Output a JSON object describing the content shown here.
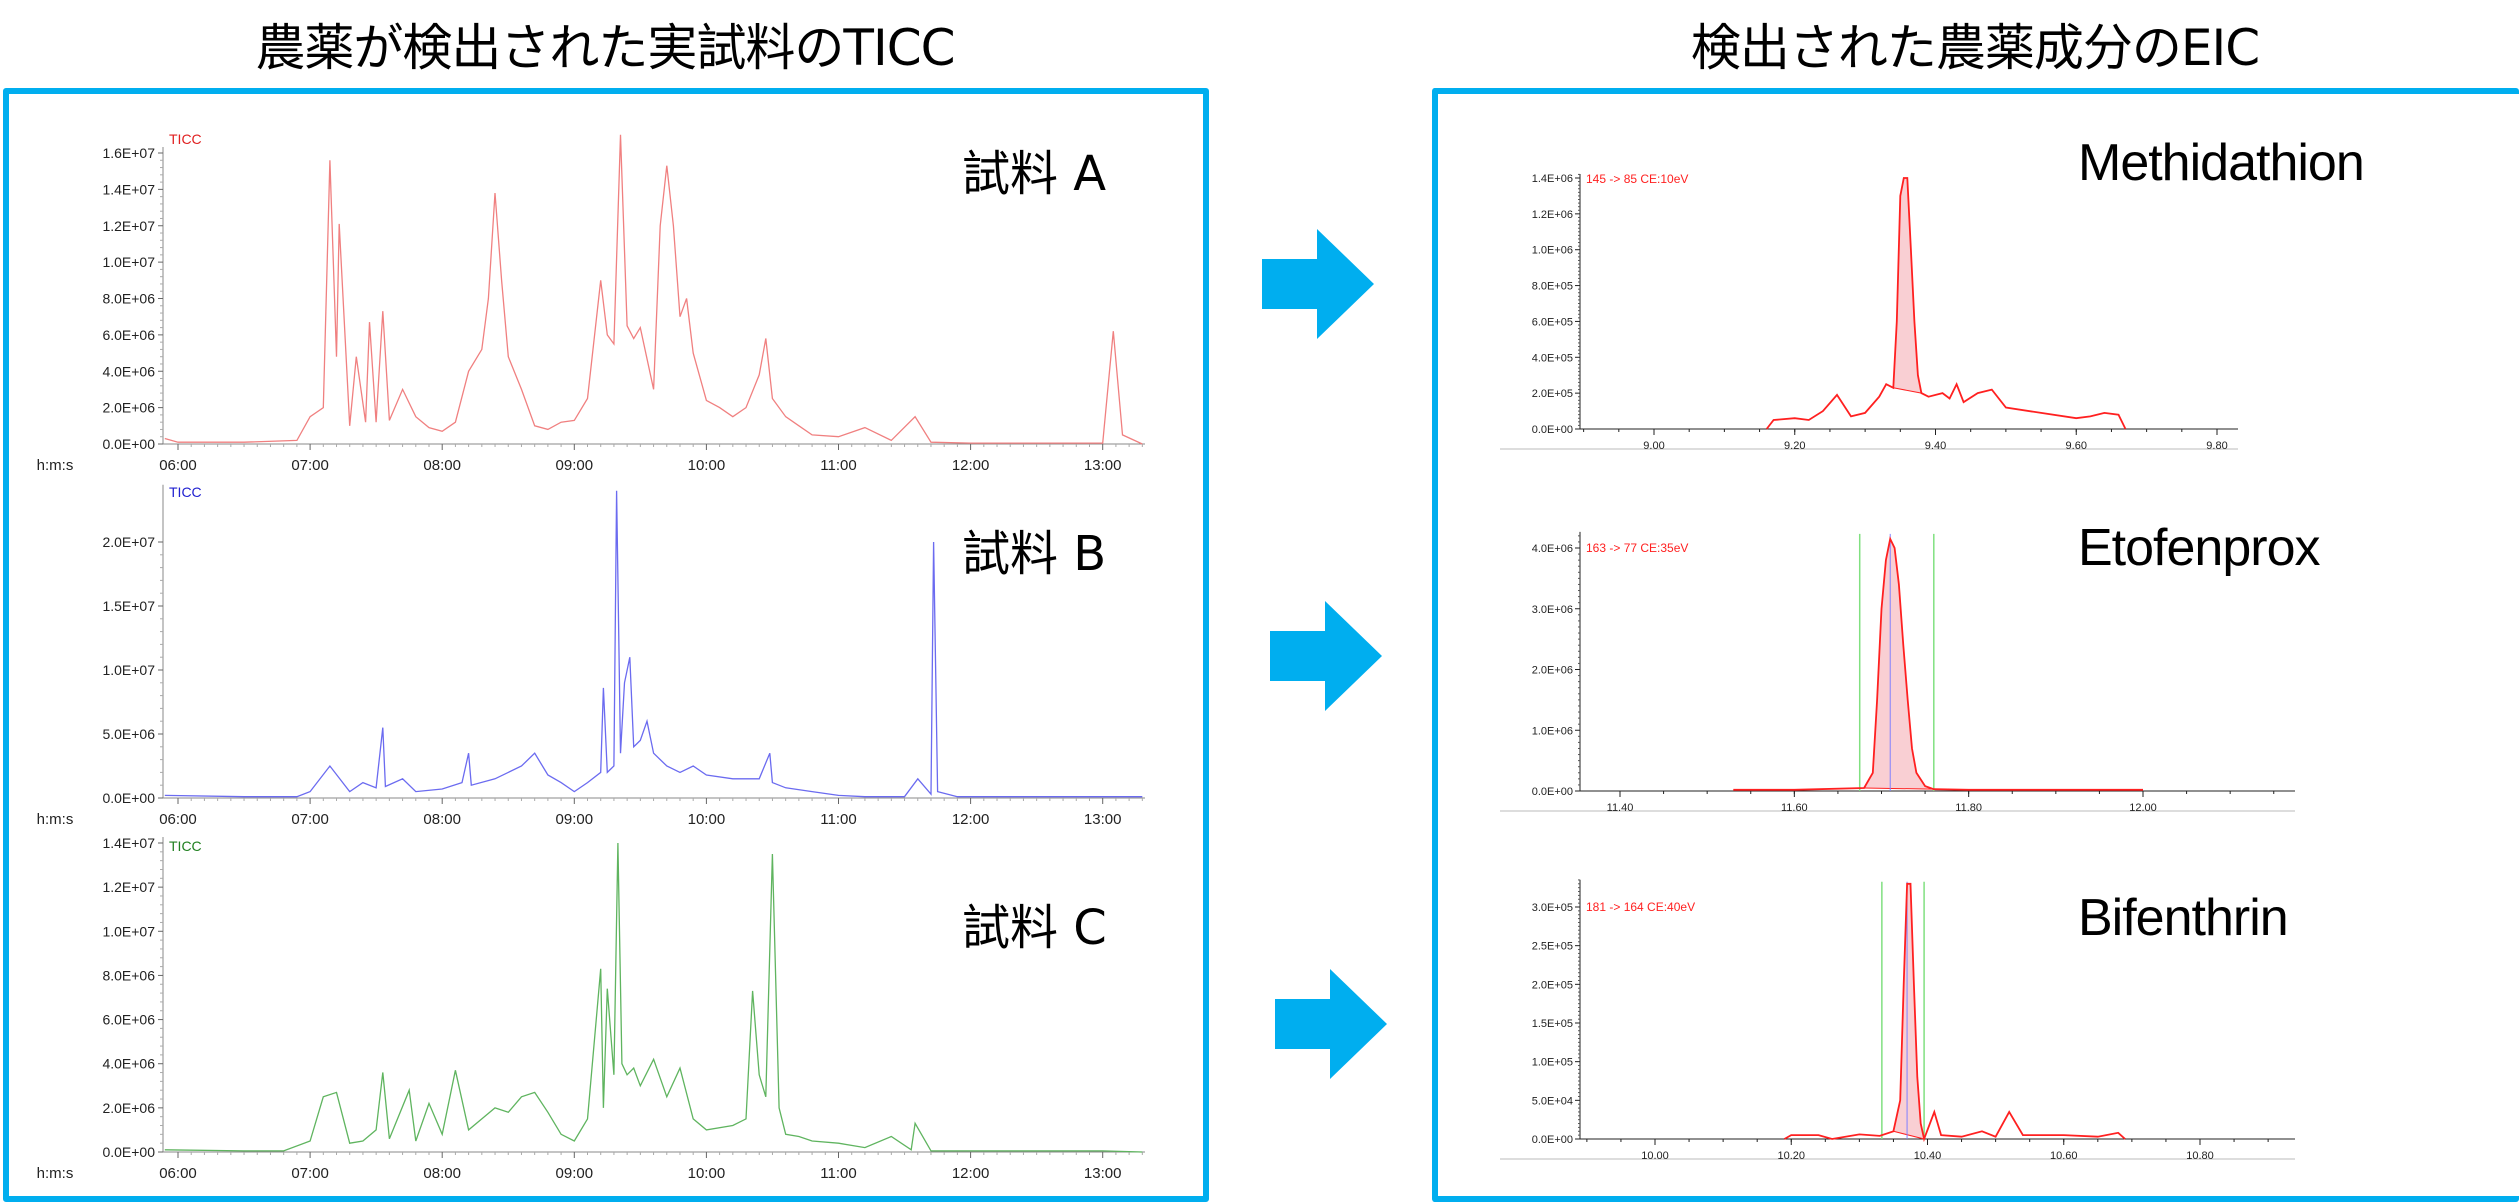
{
  "headings": {
    "left": "農薬が検出された実試料のTICC",
    "right": "検出された農薬成分のEIC"
  },
  "colors": {
    "frame": "#00AEEF",
    "arrow": "#00AEEF",
    "sample_a": "#F08080",
    "sample_a_label": "#E02020",
    "sample_b": "#6B6BF0",
    "sample_b_label": "#2020D0",
    "sample_c": "#5FB45F",
    "sample_c_label": "#208020",
    "eic_line": "#FF2020",
    "eic_fill": "#F9CFD3",
    "integration_marker": "#80E080",
    "apex_marker": "#8080FF"
  },
  "samples": [
    {
      "label": "試料 A",
      "trace_label": "TICC"
    },
    {
      "label": "試料 B",
      "trace_label": "TICC"
    },
    {
      "label": "試料 C",
      "trace_label": "TICC"
    }
  ],
  "compounds": [
    {
      "name": "Methidathion",
      "transition": "145 -> 85 CE:10eV"
    },
    {
      "name": "Etofenprox",
      "transition": "163 -> 77 CE:35eV"
    },
    {
      "name": "Bifenthrin",
      "transition": "181 -> 164 CE:40eV"
    }
  ],
  "chart_data": [
    {
      "type": "line",
      "title": "TICC",
      "panel_label": "試料 A",
      "xlabel": "h:m:s",
      "ylabel": "",
      "x_ticks": [
        "06:00",
        "07:00",
        "08:00",
        "09:00",
        "10:00",
        "11:00",
        "12:00",
        "13:00"
      ],
      "y_ticks": [
        "0.0E+00",
        "2.0E+06",
        "4.0E+06",
        "6.0E+06",
        "8.0E+06",
        "1.0E+07",
        "1.2E+07",
        "1.4E+07",
        "1.6E+07"
      ],
      "xlim_min": [
        5.9,
        13.33
      ],
      "ylim": [
        0,
        16000000
      ],
      "series": [
        {
          "name": "TICC",
          "x_min": [
            5.9,
            6.0,
            6.5,
            6.9,
            7.0,
            7.1,
            7.15,
            7.2,
            7.22,
            7.3,
            7.35,
            7.42,
            7.45,
            7.5,
            7.55,
            7.6,
            7.7,
            7.8,
            7.9,
            8.0,
            8.1,
            8.2,
            8.3,
            8.35,
            8.4,
            8.45,
            8.5,
            8.6,
            8.7,
            8.8,
            8.9,
            9.0,
            9.1,
            9.2,
            9.25,
            9.3,
            9.35,
            9.4,
            9.45,
            9.5,
            9.6,
            9.65,
            9.7,
            9.75,
            9.8,
            9.85,
            9.9,
            10.0,
            10.1,
            10.2,
            10.3,
            10.4,
            10.45,
            10.5,
            10.6,
            10.7,
            10.8,
            11.0,
            11.2,
            11.4,
            11.58,
            11.7,
            12.0,
            12.5,
            13.0,
            13.08,
            13.15,
            13.3
          ],
          "values": [
            300000,
            100000,
            100000,
            200000,
            1500000,
            2000000,
            15600000,
            4800000,
            12100000,
            1000000,
            4800000,
            1200000,
            6700000,
            1200000,
            7300000,
            1300000,
            3000000,
            1500000,
            900000,
            700000,
            1200000,
            4000000,
            5200000,
            8000000,
            13800000,
            9000000,
            4800000,
            3000000,
            1000000,
            800000,
            1200000,
            1300000,
            2500000,
            9000000,
            6000000,
            5500000,
            17000000,
            6500000,
            5800000,
            6400000,
            3000000,
            12000000,
            15300000,
            12000000,
            7000000,
            8000000,
            5000000,
            2400000,
            2000000,
            1500000,
            2000000,
            3800000,
            5800000,
            2500000,
            1500000,
            1000000,
            500000,
            400000,
            900000,
            200000,
            1500000,
            100000,
            50000,
            50000,
            50000,
            6200000,
            500000,
            0
          ]
        }
      ]
    },
    {
      "type": "line",
      "title": "TICC",
      "panel_label": "試料 B",
      "xlabel": "h:m:s",
      "x_ticks": [
        "06:00",
        "07:00",
        "08:00",
        "09:00",
        "10:00",
        "11:00",
        "12:00",
        "13:00"
      ],
      "y_ticks": [
        "0.0E+00",
        "5.0E+06",
        "1.0E+07",
        "1.5E+07",
        "2.0E+07"
      ],
      "xlim_min": [
        5.9,
        13.33
      ],
      "ylim": [
        0,
        24000000
      ],
      "series": [
        {
          "name": "TICC",
          "x_min": [
            5.9,
            6.5,
            6.9,
            7.0,
            7.15,
            7.3,
            7.4,
            7.5,
            7.55,
            7.57,
            7.7,
            7.8,
            8.0,
            8.15,
            8.2,
            8.22,
            8.4,
            8.6,
            8.7,
            8.8,
            8.9,
            9.0,
            9.1,
            9.2,
            9.22,
            9.25,
            9.3,
            9.32,
            9.35,
            9.38,
            9.42,
            9.45,
            9.5,
            9.55,
            9.6,
            9.7,
            9.8,
            9.9,
            10.0,
            10.2,
            10.4,
            10.48,
            10.5,
            10.6,
            10.8,
            11.0,
            11.2,
            11.5,
            11.6,
            11.7,
            11.72,
            11.75,
            11.9,
            12.5,
            13.3
          ],
          "values": [
            200000,
            100000,
            100000,
            500000,
            2500000,
            500000,
            1200000,
            800000,
            5500000,
            900000,
            1500000,
            500000,
            700000,
            1200000,
            3500000,
            1000000,
            1500000,
            2500000,
            3500000,
            1800000,
            1200000,
            500000,
            1200000,
            2000000,
            8600000,
            2000000,
            2500000,
            24000000,
            3500000,
            9000000,
            11000000,
            4000000,
            4500000,
            6000000,
            3500000,
            2500000,
            2000000,
            2500000,
            1800000,
            1500000,
            1500000,
            3500000,
            1200000,
            800000,
            500000,
            200000,
            100000,
            100000,
            1500000,
            300000,
            20000000,
            500000,
            100000,
            100000,
            100000
          ]
        }
      ]
    },
    {
      "type": "line",
      "title": "TICC",
      "panel_label": "試料 C",
      "xlabel": "h:m:s",
      "x_ticks": [
        "06:00",
        "07:00",
        "08:00",
        "09:00",
        "10:00",
        "11:00",
        "12:00",
        "13:00"
      ],
      "y_ticks": [
        "0.0E+00",
        "2.0E+06",
        "4.0E+06",
        "6.0E+06",
        "8.0E+06",
        "1.0E+07",
        "1.2E+07",
        "1.4E+07"
      ],
      "xlim_min": [
        5.9,
        13.33
      ],
      "ylim": [
        0,
        14000000
      ],
      "series": [
        {
          "name": "TICC",
          "x_min": [
            5.9,
            6.5,
            6.8,
            7.0,
            7.1,
            7.2,
            7.3,
            7.4,
            7.5,
            7.55,
            7.6,
            7.75,
            7.8,
            7.9,
            8.0,
            8.1,
            8.2,
            8.3,
            8.4,
            8.5,
            8.6,
            8.7,
            8.8,
            8.9,
            9.0,
            9.1,
            9.2,
            9.22,
            9.25,
            9.3,
            9.33,
            9.36,
            9.4,
            9.45,
            9.5,
            9.6,
            9.7,
            9.8,
            9.9,
            10.0,
            10.2,
            10.3,
            10.35,
            10.4,
            10.45,
            10.5,
            10.55,
            10.6,
            10.7,
            10.8,
            11.0,
            11.2,
            11.4,
            11.55,
            11.58,
            11.7,
            12.0,
            12.5,
            13.0,
            13.3
          ],
          "values": [
            100000,
            50000,
            50000,
            500000,
            2500000,
            2700000,
            400000,
            500000,
            1000000,
            3600000,
            600000,
            2800000,
            500000,
            2200000,
            800000,
            3700000,
            1000000,
            1500000,
            2000000,
            1800000,
            2500000,
            2700000,
            1800000,
            800000,
            500000,
            1500000,
            8300000,
            2000000,
            7400000,
            3500000,
            14000000,
            4000000,
            3500000,
            3800000,
            3000000,
            4200000,
            2500000,
            3800000,
            1500000,
            1000000,
            1200000,
            1500000,
            7300000,
            3500000,
            2500000,
            13500000,
            2000000,
            800000,
            700000,
            500000,
            400000,
            200000,
            700000,
            100000,
            1300000,
            50000,
            50000,
            50000,
            50000,
            0
          ]
        }
      ]
    },
    {
      "type": "area",
      "title": "145 -> 85 CE:10eV",
      "panel_label": "Methidathion",
      "x_ticks": [
        "9.00",
        "9.20",
        "9.40",
        "9.60",
        "9.80"
      ],
      "y_ticks": [
        "0.0E+00",
        "2.0E+05",
        "4.0E+05",
        "6.0E+05",
        "8.0E+05",
        "1.0E+06",
        "1.2E+06",
        "1.4E+06"
      ],
      "xlim": [
        8.87,
        9.85
      ],
      "ylim": [
        0,
        1400000
      ],
      "integration": {
        "start": 9.34,
        "end": 9.38
      },
      "series": [
        {
          "name": "145 -> 85",
          "x": [
            9.16,
            9.17,
            9.2,
            9.22,
            9.24,
            9.26,
            9.28,
            9.3,
            9.32,
            9.33,
            9.34,
            9.345,
            9.35,
            9.355,
            9.36,
            9.365,
            9.37,
            9.375,
            9.38,
            9.39,
            9.41,
            9.42,
            9.43,
            9.44,
            9.46,
            9.48,
            9.5,
            9.55,
            9.6,
            9.62,
            9.64,
            9.66,
            9.67
          ],
          "values": [
            0,
            50000,
            60000,
            50000,
            100000,
            190000,
            70000,
            90000,
            180000,
            250000,
            230000,
            600000,
            1300000,
            1400000,
            1400000,
            1000000,
            600000,
            300000,
            200000,
            180000,
            200000,
            170000,
            250000,
            150000,
            200000,
            220000,
            120000,
            90000,
            60000,
            70000,
            90000,
            80000,
            0
          ]
        }
      ]
    },
    {
      "type": "area",
      "title": "163 -> 77 CE:35eV",
      "panel_label": "Etofenprox",
      "x_ticks": [
        "11.40",
        "11.60",
        "11.80",
        "12.00"
      ],
      "y_ticks": [
        "0.0E+00",
        "1.0E+06",
        "2.0E+06",
        "3.0E+06",
        "4.0E+06"
      ],
      "xlim": [
        11.22,
        12.2
      ],
      "ylim": [
        0,
        4200000
      ],
      "integration": {
        "start": 11.675,
        "end": 11.76
      },
      "series": [
        {
          "name": "163 -> 77",
          "x": [
            11.53,
            11.6,
            11.68,
            11.69,
            11.695,
            11.7,
            11.705,
            11.71,
            11.715,
            11.72,
            11.725,
            11.73,
            11.735,
            11.74,
            11.75,
            11.76,
            11.8,
            12.0
          ],
          "values": [
            20000,
            20000,
            50000,
            300000,
            1500000,
            3000000,
            3800000,
            4150000,
            4000000,
            3400000,
            2400000,
            1500000,
            700000,
            300000,
            80000,
            30000,
            20000,
            20000
          ]
        }
      ]
    },
    {
      "type": "area",
      "title": "181 -> 164 CE:40eV",
      "panel_label": "Bifenthrin",
      "x_ticks": [
        "10.00",
        "10.20",
        "10.40",
        "10.60",
        "10.80"
      ],
      "y_ticks": [
        "0.0E+00",
        "5.0E+04",
        "1.0E+05",
        "1.5E+05",
        "2.0E+05",
        "2.5E+05",
        "3.0E+05"
      ],
      "xlim": [
        9.9,
        10.88
      ],
      "ylim": [
        0,
        330000
      ],
      "integration": {
        "start": 10.333,
        "end": 10.395
      },
      "series": [
        {
          "name": "181 -> 164",
          "x": [
            10.19,
            10.2,
            10.24,
            10.26,
            10.3,
            10.33,
            10.35,
            10.36,
            10.365,
            10.37,
            10.375,
            10.38,
            10.385,
            10.39,
            10.395,
            10.41,
            10.42,
            10.45,
            10.48,
            10.5,
            10.52,
            10.54,
            10.6,
            10.65,
            10.68,
            10.69
          ],
          "values": [
            0,
            5000,
            5000,
            0,
            6000,
            4000,
            10000,
            50000,
            200000,
            330000,
            330000,
            200000,
            80000,
            20000,
            0,
            35000,
            5000,
            3000,
            10000,
            3000,
            35000,
            5000,
            5000,
            3000,
            8000,
            0
          ]
        }
      ]
    }
  ]
}
